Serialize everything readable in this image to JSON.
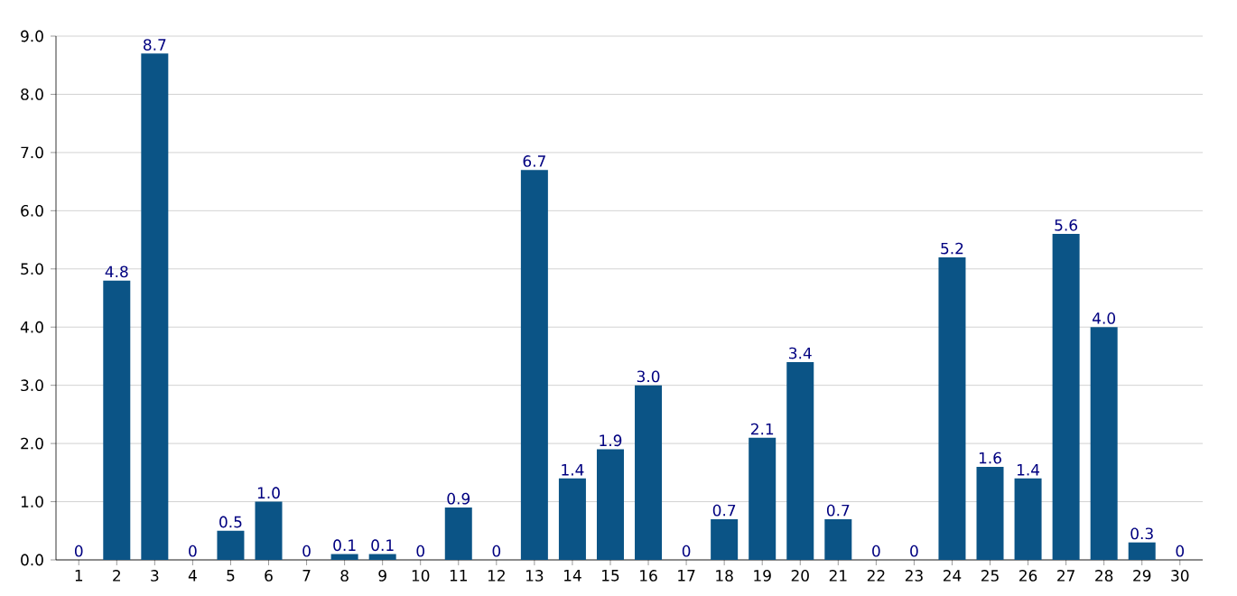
{
  "chart_data": {
    "type": "bar",
    "categories": [
      "1",
      "2",
      "3",
      "4",
      "5",
      "6",
      "7",
      "8",
      "9",
      "10",
      "11",
      "12",
      "13",
      "14",
      "15",
      "16",
      "17",
      "18",
      "19",
      "20",
      "21",
      "22",
      "23",
      "24",
      "25",
      "26",
      "27",
      "28",
      "29",
      "30"
    ],
    "values": [
      0,
      4.8,
      8.7,
      0,
      0.5,
      1.0,
      0,
      0.1,
      0.1,
      0,
      0.9,
      0,
      6.7,
      1.4,
      1.9,
      3.0,
      0,
      0.7,
      2.1,
      3.4,
      0.7,
      0,
      0,
      5.2,
      1.6,
      1.4,
      5.6,
      4.0,
      0.3,
      0
    ],
    "value_labels": [
      "0",
      "4.8",
      "8.7",
      "0",
      "0.5",
      "1.0",
      "0",
      "0.1",
      "0.1",
      "0",
      "0.9",
      "0",
      "6.7",
      "1.4",
      "1.9",
      "3.0",
      "0",
      "0.7",
      "2.1",
      "3.4",
      "0.7",
      "0",
      "0",
      "5.2",
      "1.6",
      "1.4",
      "5.6",
      "4.0",
      "0.3",
      "0"
    ],
    "color": "#0b5486",
    "ylim": [
      0,
      9
    ],
    "yticks": [
      {
        "value": 0,
        "label": "0.0"
      },
      {
        "value": 1,
        "label": "1.0"
      },
      {
        "value": 2,
        "label": "2.0"
      },
      {
        "value": 3,
        "label": "3.0"
      },
      {
        "value": 4,
        "label": "4.0"
      },
      {
        "value": 5,
        "label": "5.0"
      },
      {
        "value": 6,
        "label": "6.0"
      },
      {
        "value": 7,
        "label": "7.0"
      },
      {
        "value": 8,
        "label": "8.0"
      },
      {
        "value": 9,
        "label": "9.0"
      }
    ],
    "grid": "y"
  }
}
